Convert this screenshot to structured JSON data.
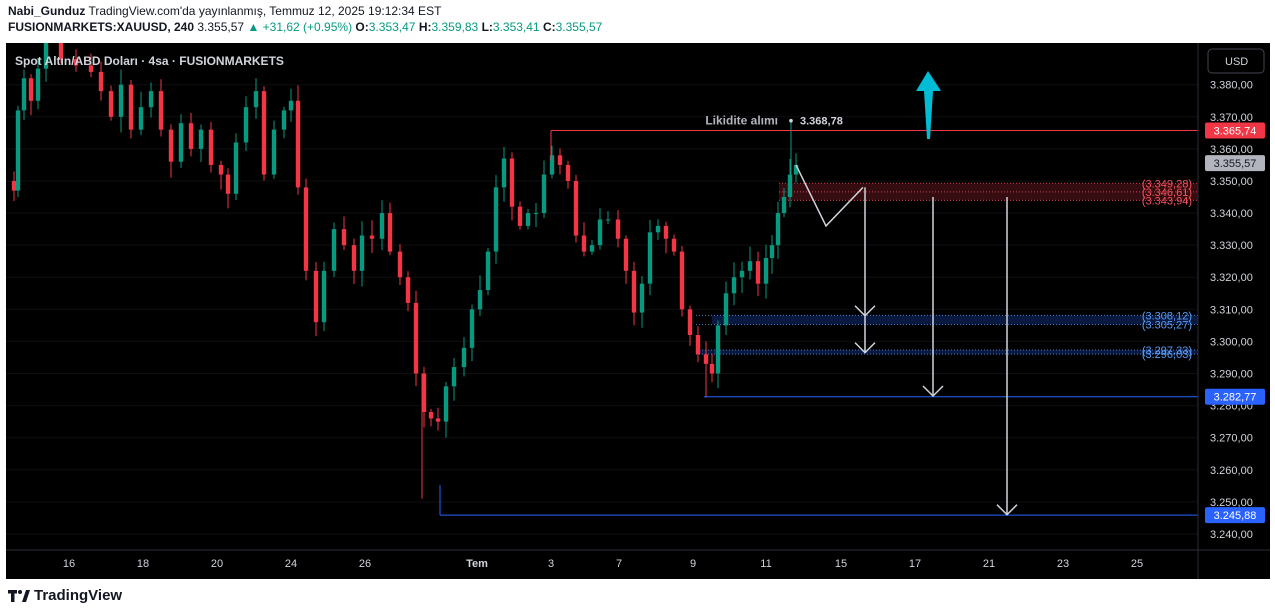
{
  "header": {
    "author": "Nabi_Gunduz",
    "published": "TradingView.com'da yayınlanmış, Temmuz 12, 2025 19:12:34 EST",
    "symbol": "FUSIONMARKETS:XAUUSD, 240",
    "last": "3.355,57",
    "change": "+31,62 (+0.95%)",
    "o_label": "O:",
    "o": "3.353,47",
    "h_label": "H:",
    "h": "3.359,83",
    "l_label": "L:",
    "l": "3.353,41",
    "c_label": "C:",
    "c": "3.355,57"
  },
  "chart": {
    "instrument_title": "Spot Altın/ABD Doları · 4sa · FUSIONMARKETS",
    "currency_button": "USD"
  },
  "chart_data": {
    "type": "candlestick",
    "ylim": [
      3235,
      3393
    ],
    "y_ticks": [
      3240,
      3250,
      3260,
      3270,
      3280,
      3290,
      3300,
      3310,
      3320,
      3330,
      3340,
      3350,
      3360,
      3370,
      3380
    ],
    "y_tick_labels": [
      "3.240,00",
      "3.250,00",
      "3.260,00",
      "3.270,00",
      "3.280,00",
      "3.290,00",
      "3.300,00",
      "3.310,00",
      "3.320,00",
      "3.330,00",
      "3.340,00",
      "3.350,00",
      "3.360,00",
      "3.370,00",
      "3.380,00"
    ],
    "x_labels": [
      "16",
      "18",
      "20",
      "24",
      "26",
      "Tem",
      "3",
      "7",
      "9",
      "11",
      "15",
      "17",
      "21",
      "23",
      "25"
    ],
    "price_tags": [
      {
        "label": "3.365,74",
        "value": 3365.74,
        "color": "#f23645"
      },
      {
        "label": "3.355,57",
        "value": 3355.57,
        "color": "#b2b5be"
      },
      {
        "label": "3.282,77",
        "value": 3282.77,
        "color": "#2962ff"
      },
      {
        "label": "3.245,88",
        "value": 3245.88,
        "color": "#2962ff"
      }
    ],
    "zone_labels": [
      {
        "label": "(3.349,28)",
        "value": 3349.28,
        "color": "#f7525f"
      },
      {
        "label": "(3.346,61)",
        "value": 3346.61,
        "color": "#f7525f"
      },
      {
        "label": "(3.343,94)",
        "value": 3343.94,
        "color": "#f7525f"
      },
      {
        "label": "(3.308,12)",
        "value": 3308.12,
        "color": "#5b9cf6"
      },
      {
        "label": "(3.305,27)",
        "value": 3305.27,
        "color": "#5b9cf6"
      },
      {
        "label": "(3.297,33)",
        "value": 3297.33,
        "color": "#5b9cf6"
      },
      {
        "label": "(3.296,03)",
        "value": 3296.03,
        "color": "#5b9cf6"
      }
    ],
    "annotation": {
      "label": "Likidite alımı",
      "value_label": "3.368,78",
      "value": 3368.78
    },
    "colors": {
      "up": "#089981",
      "down": "#f23645",
      "background": "#000000"
    }
  },
  "footer": {
    "brand": "TradingView"
  }
}
